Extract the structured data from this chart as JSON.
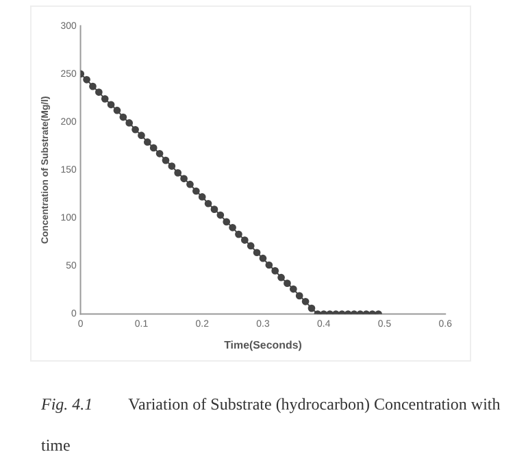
{
  "chart_data": {
    "type": "line",
    "xlabel": "Time(Seconds)",
    "ylabel": "Concentration of Substrate(Mg/l)",
    "x": [
      0,
      0.01,
      0.02,
      0.03,
      0.04,
      0.05,
      0.06,
      0.07,
      0.08,
      0.09,
      0.1,
      0.11,
      0.12,
      0.13,
      0.14,
      0.15,
      0.16,
      0.17,
      0.18,
      0.19,
      0.2,
      0.21,
      0.22,
      0.23,
      0.24,
      0.25,
      0.26,
      0.27,
      0.28,
      0.29,
      0.3,
      0.31,
      0.32,
      0.33,
      0.34,
      0.35,
      0.36,
      0.37,
      0.38,
      0.39,
      0.4,
      0.41,
      0.42,
      0.43,
      0.44,
      0.45,
      0.46,
      0.47,
      0.48,
      0.49
    ],
    "series": [
      {
        "color": "#444444",
        "values": [
          250,
          244,
          237,
          231,
          224,
          218,
          212,
          205,
          199,
          192,
          186,
          179,
          173,
          167,
          160,
          154,
          147,
          141,
          135,
          128,
          122,
          115,
          109,
          103,
          96,
          90,
          83,
          77,
          71,
          64,
          58,
          51,
          45,
          38,
          32,
          26,
          19,
          13,
          6,
          0,
          0,
          0,
          0,
          0,
          0,
          0,
          0,
          0,
          0,
          0
        ]
      }
    ],
    "xlim": [
      0,
      0.6
    ],
    "xticks": [
      0,
      0.1,
      0.2,
      0.3,
      0.4,
      0.5,
      0.6
    ],
    "ylim": [
      0,
      300
    ],
    "yticks": [
      0,
      50,
      100,
      150,
      200,
      250,
      300
    ],
    "grid": false,
    "legend": false,
    "marker": "circle",
    "line_style": "solid",
    "annotations": [
      "Fig. 4.1",
      "Variation of Substrate (hydrocarbon) Concentration with time"
    ]
  }
}
